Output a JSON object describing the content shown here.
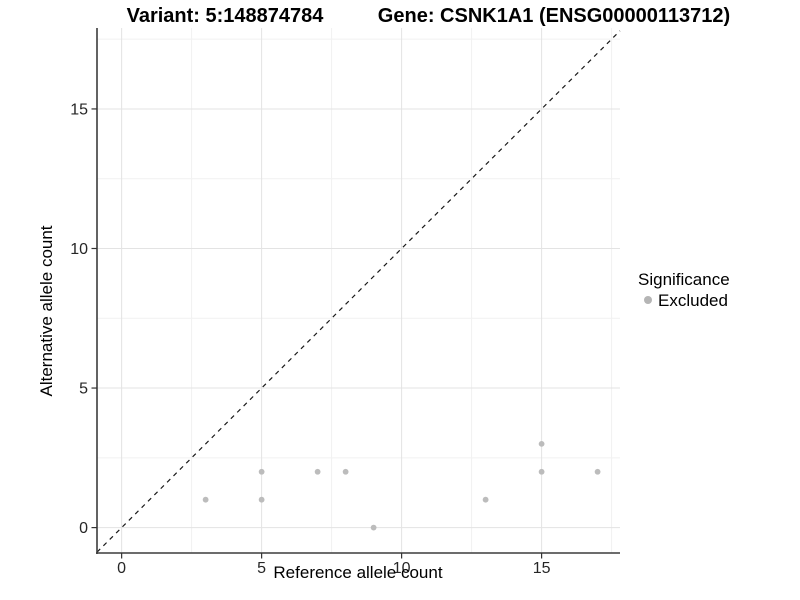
{
  "page": {
    "background": "#ffffff"
  },
  "chart_data": {
    "type": "scatter",
    "title_left": "Variant: 5:148874784",
    "title_right": "Gene: CSNK1A1 (ENSG00000113712)",
    "xlabel": "Reference allele count",
    "ylabel": "Alternative allele count",
    "xlim": [
      -0.88,
      17.8
    ],
    "ylim": [
      -0.91,
      17.9
    ],
    "x_ticks": [
      0,
      5,
      10,
      15
    ],
    "y_ticks": [
      0,
      5,
      10,
      15
    ],
    "x_minor_ticks": [
      2.5,
      7.5,
      12.5,
      17.5
    ],
    "y_minor_ticks": [
      2.5,
      7.5,
      12.5,
      17.5
    ],
    "grid": true,
    "identity_line": {
      "slope": 1,
      "intercept": 0,
      "style": "dashed",
      "color": "#1a1a1a"
    },
    "series": [
      {
        "name": "Excluded",
        "color": "#bcbcbc",
        "points": [
          [
            3,
            1
          ],
          [
            5,
            1
          ],
          [
            5,
            2
          ],
          [
            7,
            2
          ],
          [
            8,
            2
          ],
          [
            9,
            0
          ],
          [
            13,
            1
          ],
          [
            15,
            2
          ],
          [
            15,
            3
          ],
          [
            17,
            2
          ]
        ]
      }
    ],
    "legend": {
      "title": "Significance",
      "position": "right",
      "entries": [
        {
          "label": "Excluded",
          "color": "#b5b5b5"
        }
      ]
    },
    "colors": {
      "grid_major": "#e3e3e3",
      "grid_minor": "#f1f1f1",
      "axis_line": "#3c3c3c",
      "tick_mark": "#333333",
      "point": "#bcbcbc"
    }
  }
}
